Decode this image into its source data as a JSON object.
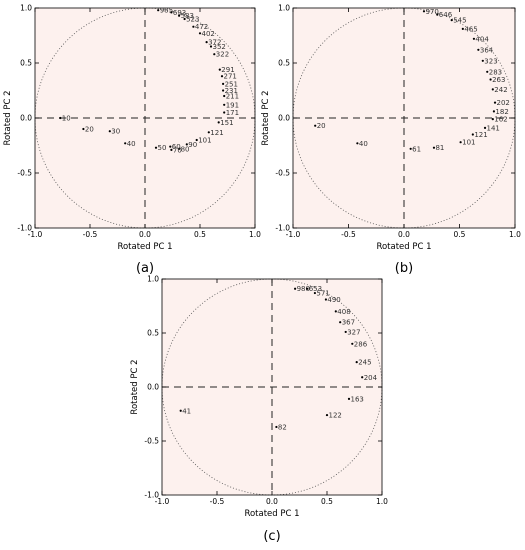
{
  "figure": {
    "x_axis_label": "Rotated PC 1",
    "y_axis_label": "Rotated PC 2"
  },
  "chart_data": [
    {
      "type": "scatter",
      "caption": "(a)",
      "xlabel": "Rotated PC 1",
      "ylabel": "Rotated PC 2",
      "xlim": [
        -1.0,
        1.0
      ],
      "ylim": [
        -1.0,
        1.0
      ],
      "xticks": [
        "-1.0",
        "-0.5",
        "0.0",
        "0.5",
        "1.0"
      ],
      "yticks": [
        "-1.0",
        "-0.5",
        "0.0",
        "0.5",
        "1.0"
      ],
      "unit_circle": true,
      "dashed_axes_at_zero": true,
      "background": "#fdf1ee",
      "points": [
        {
          "label": "985",
          "x": 0.12,
          "y": 0.98
        },
        {
          "label": "693",
          "x": 0.24,
          "y": 0.96
        },
        {
          "label": "583",
          "x": 0.31,
          "y": 0.93
        },
        {
          "label": "523",
          "x": 0.36,
          "y": 0.9
        },
        {
          "label": "472",
          "x": 0.44,
          "y": 0.83
        },
        {
          "label": "402",
          "x": 0.5,
          "y": 0.77
        },
        {
          "label": "372",
          "x": 0.56,
          "y": 0.69
        },
        {
          "label": "352",
          "x": 0.6,
          "y": 0.65
        },
        {
          "label": "322",
          "x": 0.63,
          "y": 0.58
        },
        {
          "label": "291",
          "x": 0.68,
          "y": 0.44
        },
        {
          "label": "271",
          "x": 0.7,
          "y": 0.38
        },
        {
          "label": "251",
          "x": 0.71,
          "y": 0.31
        },
        {
          "label": "231",
          "x": 0.71,
          "y": 0.25
        },
        {
          "label": "211",
          "x": 0.72,
          "y": 0.2
        },
        {
          "label": "191",
          "x": 0.72,
          "y": 0.12
        },
        {
          "label": "171",
          "x": 0.72,
          "y": 0.05
        },
        {
          "label": "151",
          "x": 0.67,
          "y": -0.04
        },
        {
          "label": "121",
          "x": 0.58,
          "y": -0.13
        },
        {
          "label": "101",
          "x": 0.47,
          "y": -0.2
        },
        {
          "label": "90",
          "x": 0.38,
          "y": -0.24
        },
        {
          "label": "80",
          "x": 0.31,
          "y": -0.28
        },
        {
          "label": "70",
          "x": 0.24,
          "y": -0.29
        },
        {
          "label": "60",
          "x": 0.23,
          "y": -0.26
        },
        {
          "label": "50",
          "x": 0.1,
          "y": -0.27
        },
        {
          "label": "40",
          "x": -0.18,
          "y": -0.23
        },
        {
          "label": "30",
          "x": -0.32,
          "y": -0.12
        },
        {
          "label": "20",
          "x": -0.56,
          "y": -0.1
        },
        {
          "label": "10",
          "x": -0.77,
          "y": 0.0
        }
      ]
    },
    {
      "type": "scatter",
      "caption": "(b)",
      "xlabel": "Rotated PC 1",
      "ylabel": "Rotated PC 2",
      "xlim": [
        -1.0,
        1.0
      ],
      "ylim": [
        -1.0,
        1.0
      ],
      "xticks": [
        "-1.0",
        "-0.5",
        "0.0",
        "0.5",
        "1.0"
      ],
      "yticks": [
        "-1.0",
        "-0.5",
        "0.0",
        "0.5",
        "1.0"
      ],
      "unit_circle": true,
      "dashed_axes_at_zero": true,
      "background": "#fdf1ee",
      "points": [
        {
          "label": "970",
          "x": 0.18,
          "y": 0.97
        },
        {
          "label": "646",
          "x": 0.3,
          "y": 0.94
        },
        {
          "label": "545",
          "x": 0.43,
          "y": 0.89
        },
        {
          "label": "465",
          "x": 0.53,
          "y": 0.81
        },
        {
          "label": "404",
          "x": 0.63,
          "y": 0.72
        },
        {
          "label": "364",
          "x": 0.67,
          "y": 0.62
        },
        {
          "label": "323",
          "x": 0.71,
          "y": 0.52
        },
        {
          "label": "283",
          "x": 0.75,
          "y": 0.42
        },
        {
          "label": "263",
          "x": 0.78,
          "y": 0.35
        },
        {
          "label": "242",
          "x": 0.8,
          "y": 0.26
        },
        {
          "label": "202",
          "x": 0.82,
          "y": 0.14
        },
        {
          "label": "182",
          "x": 0.81,
          "y": 0.06
        },
        {
          "label": "162",
          "x": 0.8,
          "y": -0.01
        },
        {
          "label": "141",
          "x": 0.73,
          "y": -0.09
        },
        {
          "label": "121",
          "x": 0.62,
          "y": -0.15
        },
        {
          "label": "101",
          "x": 0.51,
          "y": -0.22
        },
        {
          "label": "81",
          "x": 0.27,
          "y": -0.27
        },
        {
          "label": "61",
          "x": 0.06,
          "y": -0.28
        },
        {
          "label": "40",
          "x": -0.42,
          "y": -0.23
        },
        {
          "label": "20",
          "x": -0.8,
          "y": -0.07
        }
      ]
    },
    {
      "type": "scatter",
      "caption": "(c)",
      "xlabel": "Rotated PC 1",
      "ylabel": "Rotated PC 2",
      "xlim": [
        -1.0,
        1.0
      ],
      "ylim": [
        -1.0,
        1.0
      ],
      "xticks": [
        "-1.0",
        "-0.5",
        "0.0",
        "0.5",
        "1.0"
      ],
      "yticks": [
        "-1.0",
        "-0.5",
        "0.0",
        "0.5",
        "1.0"
      ],
      "unit_circle": true,
      "dashed_axes_at_zero": true,
      "background": "#fdf1ee",
      "points": [
        {
          "label": "980",
          "x": 0.21,
          "y": 0.91
        },
        {
          "label": "653",
          "x": 0.32,
          "y": 0.91
        },
        {
          "label": "571",
          "x": 0.39,
          "y": 0.87
        },
        {
          "label": "490",
          "x": 0.49,
          "y": 0.81
        },
        {
          "label": "408",
          "x": 0.58,
          "y": 0.7
        },
        {
          "label": "367",
          "x": 0.62,
          "y": 0.6
        },
        {
          "label": "327",
          "x": 0.67,
          "y": 0.51
        },
        {
          "label": "286",
          "x": 0.73,
          "y": 0.4
        },
        {
          "label": "245",
          "x": 0.77,
          "y": 0.23
        },
        {
          "label": "204",
          "x": 0.82,
          "y": 0.09
        },
        {
          "label": "163",
          "x": 0.7,
          "y": -0.11
        },
        {
          "label": "122",
          "x": 0.5,
          "y": -0.26
        },
        {
          "label": "82",
          "x": 0.04,
          "y": -0.37
        },
        {
          "label": "41",
          "x": -0.83,
          "y": -0.22
        }
      ]
    }
  ]
}
